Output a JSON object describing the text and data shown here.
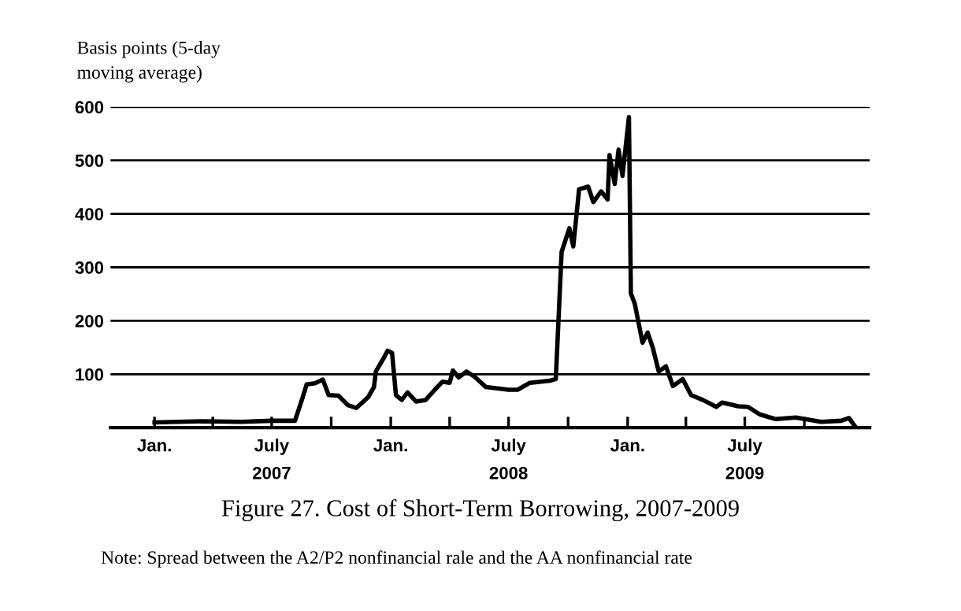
{
  "chart_data": {
    "type": "line",
    "title": "Figure 27. Cost of Short-Term Borrowing, 2007-2009",
    "ylabel": "Basis points (5-day\nmoving average)",
    "annotations": [
      "Note: Spread between the A2/P2 nonfinancial rale and the AA nonfinancial rate"
    ],
    "x": [
      "2007-01-01",
      "2007-03-15",
      "2007-05-15",
      "2007-07-01",
      "2007-08-06",
      "2007-08-18",
      "2007-08-24",
      "2007-09-06",
      "2007-09-18",
      "2007-09-27",
      "2007-10-12",
      "2007-10-27",
      "2007-11-09",
      "2007-11-27",
      "2007-12-06",
      "2007-12-09",
      "2007-12-21",
      "2007-12-27",
      "2008-01-03",
      "2008-01-09",
      "2008-01-18",
      "2008-01-27",
      "2008-02-09",
      "2008-02-24",
      "2008-03-09",
      "2008-03-21",
      "2008-04-01",
      "2008-04-06",
      "2008-04-15",
      "2008-04-27",
      "2008-05-09",
      "2008-05-27",
      "2008-07-01",
      "2008-07-15",
      "2008-08-03",
      "2008-09-03",
      "2008-09-12",
      "2008-09-21",
      "2008-10-03",
      "2008-10-09",
      "2008-10-18",
      "2008-11-01",
      "2008-11-09",
      "2008-11-21",
      "2008-12-01",
      "2008-12-04",
      "2008-12-12",
      "2008-12-18",
      "2008-12-24",
      "2009-01-03",
      "2009-01-06",
      "2009-01-12",
      "2009-01-24",
      "2009-02-01",
      "2009-02-09",
      "2009-02-18",
      "2009-03-01",
      "2009-03-12",
      "2009-03-27",
      "2009-04-09",
      "2009-04-27",
      "2009-05-18",
      "2009-05-27",
      "2009-06-21",
      "2009-07-06",
      "2009-07-24",
      "2009-08-18",
      "2009-09-18",
      "2009-10-27",
      "2009-11-27",
      "2009-12-09",
      "2009-12-18"
    ],
    "series": [
      {
        "color": "#000000",
        "values": [
          10,
          12,
          11,
          13,
          13,
          57,
          81,
          83,
          90,
          61,
          60,
          42,
          37,
          57,
          76,
          105,
          130,
          144,
          140,
          61,
          52,
          66,
          49,
          52,
          71,
          86,
          84,
          107,
          94,
          105,
          96,
          76,
          71,
          71,
          84,
          88,
          91,
          329,
          373,
          339,
          446,
          451,
          422,
          442,
          427,
          510,
          456,
          520,
          471,
          581,
          251,
          232,
          159,
          178,
          149,
          105,
          115,
          78,
          91,
          61,
          52,
          39,
          47,
          40,
          39,
          25,
          16,
          19,
          11,
          13,
          18,
          3
        ]
      }
    ],
    "xlim": [
      "2006-10-25",
      "2010-01-10"
    ],
    "xticks": [
      {
        "value": "2007-01-01",
        "label": "Jan."
      },
      {
        "value": "2007-04-01",
        "label": null
      },
      {
        "value": "2007-07-01",
        "label": "July\n2007"
      },
      {
        "value": "2007-10-01",
        "label": null
      },
      {
        "value": "2008-01-01",
        "label": "Jan."
      },
      {
        "value": "2008-04-01",
        "label": null
      },
      {
        "value": "2008-07-01",
        "label": "July\n2008"
      },
      {
        "value": "2008-10-01",
        "label": null
      },
      {
        "value": "2009-01-01",
        "label": "Jan."
      },
      {
        "value": "2009-04-01",
        "label": null
      },
      {
        "value": "2009-07-01",
        "label": "July\n2009"
      },
      {
        "value": "2009-10-01",
        "label": null
      }
    ],
    "ylim": [
      0,
      600
    ],
    "yticks": [
      {
        "value": 0,
        "label": null
      },
      100,
      200,
      300,
      400,
      500,
      600
    ],
    "grid": "y",
    "legend": false,
    "marker": "none",
    "line_style": "solid"
  }
}
